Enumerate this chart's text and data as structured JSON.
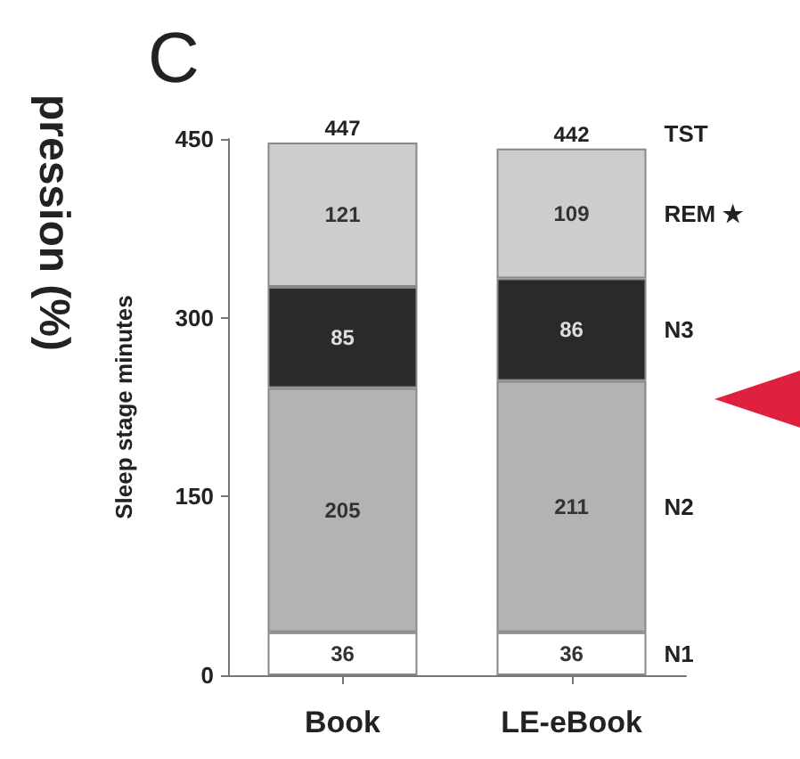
{
  "chart_data": {
    "type": "bar",
    "title": "C",
    "ylabel": "Sleep stage minutes",
    "categories": [
      "Book",
      "LE-eBook"
    ],
    "stacked": true,
    "data_labels": true,
    "legend": false,
    "grid": false,
    "series": [
      {
        "name": "N1",
        "color": "#ffffff",
        "values": [
          36,
          36
        ]
      },
      {
        "name": "N2",
        "color": "#b3b3b3",
        "values": [
          205,
          211
        ]
      },
      {
        "name": "N3",
        "color": "#2a2a2a",
        "values": [
          85,
          86
        ]
      },
      {
        "name": "REM ★",
        "color": "#cdcdcd",
        "values": [
          121,
          109
        ]
      }
    ],
    "totals": [
      "447",
      "442"
    ],
    "ylim": [
      0,
      450
    ],
    "yticks": [
      0,
      150,
      300,
      450
    ],
    "annotations": [
      "pression (%)",
      "TST"
    ]
  }
}
